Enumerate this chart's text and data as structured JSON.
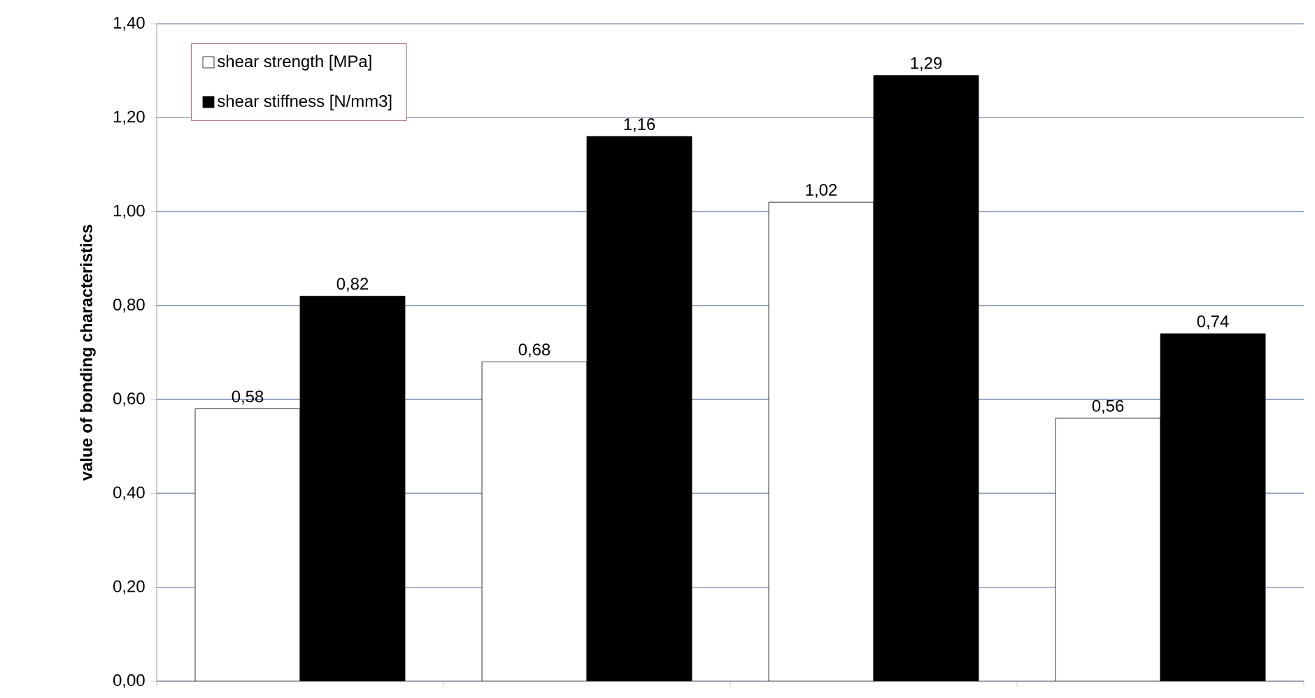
{
  "chart_data": {
    "type": "bar",
    "ylabel": "value of bonding characteristics",
    "categories": [
      null,
      null,
      null,
      null
    ],
    "series": [
      {
        "name": "shear strength [MPa]",
        "color": "#ffffff",
        "values": [
          0.58,
          0.68,
          1.02,
          0.56
        ],
        "value_labels": [
          "0,58",
          "0,68",
          "1,02",
          "0,56"
        ]
      },
      {
        "name": "shear stiffness [N/mm3]",
        "color": "#000000",
        "values": [
          0.82,
          1.16,
          1.29,
          0.74
        ],
        "value_labels": [
          "0,82",
          "1,16",
          "1,29",
          "0,74"
        ]
      }
    ],
    "ylim": [
      0,
      1.4
    ],
    "yticks": [
      {
        "value": 0,
        "label": "0,00"
      },
      {
        "value": 0.2,
        "label": "0,20"
      },
      {
        "value": 0.4,
        "label": "0,40"
      },
      {
        "value": 0.6,
        "label": "0,60"
      },
      {
        "value": 0.8,
        "label": "0,80"
      },
      {
        "value": 1.0,
        "label": "1,00"
      },
      {
        "value": 1.2,
        "label": "1,20"
      },
      {
        "value": 1.4,
        "label": "1,40"
      }
    ],
    "grid": "y",
    "legend": "top left"
  }
}
